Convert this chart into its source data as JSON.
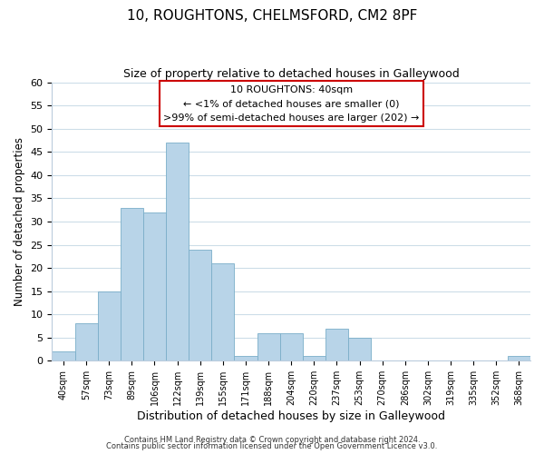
{
  "title_line1": "10, ROUGHTONS, CHELMSFORD, CM2 8PF",
  "title_line2": "Size of property relative to detached houses in Galleywood",
  "xlabel": "Distribution of detached houses by size in Galleywood",
  "ylabel": "Number of detached properties",
  "bar_labels": [
    "40sqm",
    "57sqm",
    "73sqm",
    "89sqm",
    "106sqm",
    "122sqm",
    "139sqm",
    "155sqm",
    "171sqm",
    "188sqm",
    "204sqm",
    "220sqm",
    "237sqm",
    "253sqm",
    "270sqm",
    "286sqm",
    "302sqm",
    "319sqm",
    "335sqm",
    "352sqm",
    "368sqm"
  ],
  "bar_values": [
    2,
    8,
    15,
    33,
    32,
    47,
    24,
    21,
    1,
    6,
    6,
    1,
    7,
    5,
    0,
    0,
    0,
    0,
    0,
    0,
    1
  ],
  "bar_color": "#b8d4e8",
  "bar_edge_color": "#7aaec8",
  "ylim": [
    0,
    60
  ],
  "yticks": [
    0,
    5,
    10,
    15,
    20,
    25,
    30,
    35,
    40,
    45,
    50,
    55,
    60
  ],
  "annotation_line1": "10 ROUGHTONS: 40sqm",
  "annotation_line2": "← <1% of detached houses are smaller (0)",
  "annotation_line3": ">99% of semi-detached houses are larger (202) →",
  "annotation_box_color": "#ffffff",
  "annotation_box_edge_color": "#cc0000",
  "footer_line1": "Contains HM Land Registry data © Crown copyright and database right 2024.",
  "footer_line2": "Contains public sector information licensed under the Open Government Licence v3.0.",
  "background_color": "#ffffff",
  "grid_color": "#ccdde8",
  "subject_bar_index": 0
}
